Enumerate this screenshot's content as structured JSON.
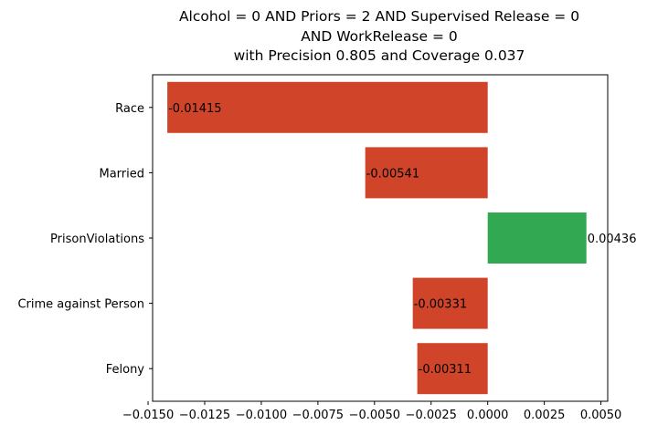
{
  "chart_data": {
    "type": "bar",
    "orientation": "horizontal",
    "title_lines": [
      "Alcohol = 0 AND Priors = 2 AND Supervised Release = 0",
      "AND WorkRelease = 0",
      "with Precision 0.805 and Coverage 0.037"
    ],
    "categories": [
      "Race",
      "Married",
      "PrisonViolations",
      "Crime against Person",
      "Felony"
    ],
    "values": [
      -0.01415,
      -0.00541,
      0.00436,
      -0.00331,
      -0.00311
    ],
    "value_labels": [
      "-0.01415",
      "-0.00541",
      "0.00436",
      "-0.00331",
      "-0.00311"
    ],
    "xlim": [
      -0.0148,
      0.0053
    ],
    "xticks": [
      -0.015,
      -0.0125,
      -0.01,
      -0.0075,
      -0.005,
      -0.0025,
      0.0,
      0.0025,
      0.005
    ],
    "xtick_labels": [
      "−0.0150",
      "−0.0125",
      "−0.0100",
      "−0.0075",
      "−0.0050",
      "−0.0025",
      "0.0000",
      "0.0025",
      "0.0050"
    ],
    "colors": {
      "negative": "#d0452a",
      "positive": "#32a852"
    },
    "grid": false,
    "xlabel": "",
    "ylabel": ""
  }
}
